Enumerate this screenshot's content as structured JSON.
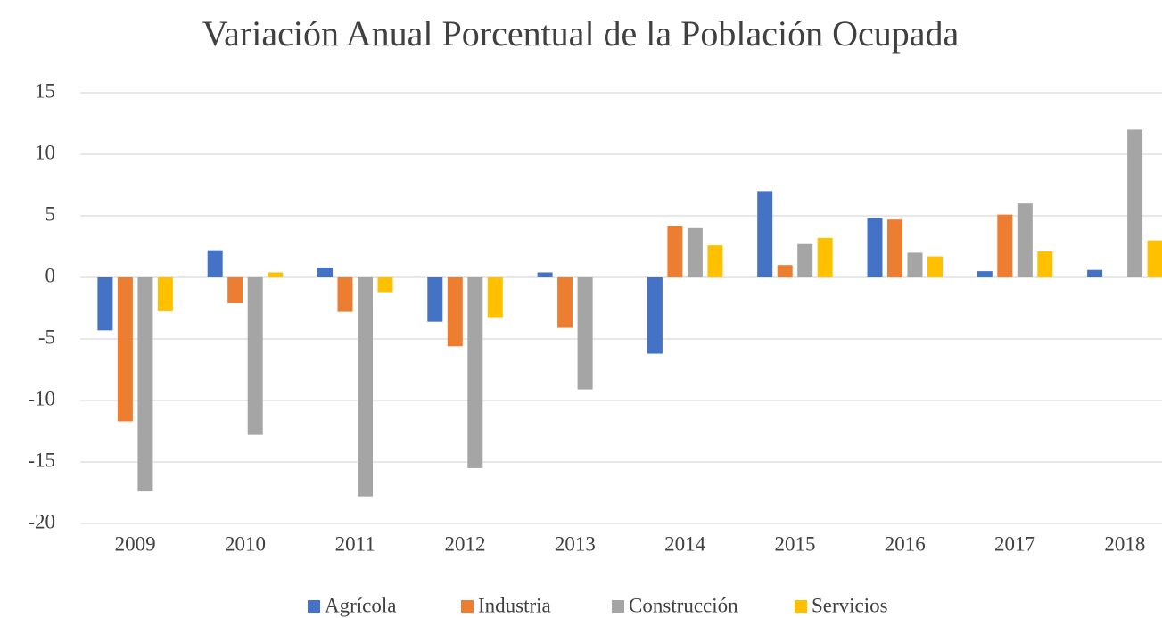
{
  "chart_data": {
    "type": "bar",
    "title": "Variación Anual Porcentual de la Población Ocupada",
    "categories": [
      "2009",
      "2010",
      "2011",
      "2012",
      "2013",
      "2014",
      "2015",
      "2016",
      "2017",
      "2018"
    ],
    "series": [
      {
        "name": "Agrícola",
        "color": "#4472c4",
        "values": [
          -4.3,
          2.2,
          0.8,
          -3.6,
          0.4,
          -6.2,
          7.0,
          4.8,
          0.5,
          0.6
        ]
      },
      {
        "name": "Industria",
        "color": "#ed7d31",
        "values": [
          -11.7,
          -2.1,
          -2.8,
          -5.6,
          -4.1,
          4.2,
          1.0,
          4.7,
          5.1,
          0
        ]
      },
      {
        "name": "Construcción",
        "color": "#a5a5a5",
        "values": [
          -17.4,
          -12.8,
          -17.8,
          -15.5,
          -9.1,
          4.0,
          2.7,
          2.0,
          6.0,
          12.0
        ]
      },
      {
        "name": "Servicios",
        "color": "#ffc000",
        "values": [
          -2.75,
          0.4,
          -1.2,
          -3.3,
          0,
          2.6,
          3.2,
          1.7,
          2.1,
          3.0
        ]
      }
    ],
    "ylim": [
      -20,
      15
    ],
    "yticks": [
      -20,
      -15,
      -10,
      -5,
      0,
      5,
      10,
      15
    ],
    "grid": true,
    "legend": "bottom"
  }
}
